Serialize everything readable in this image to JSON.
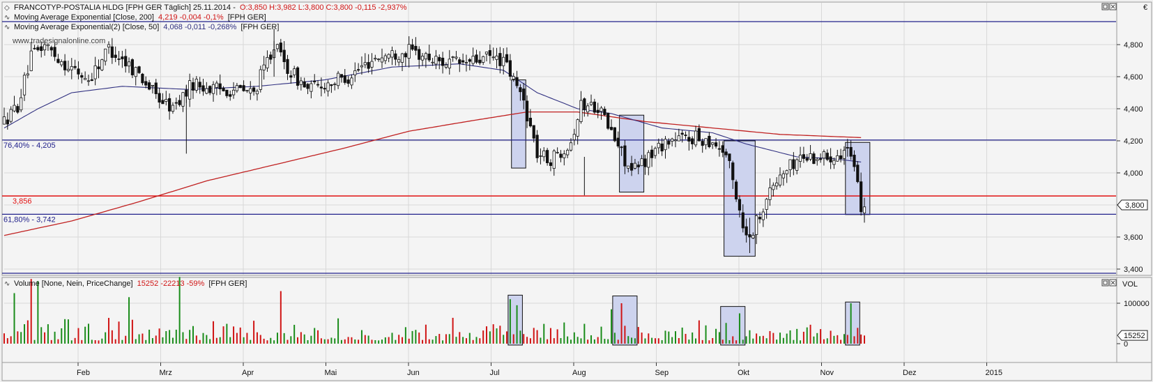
{
  "main_panel": {
    "title": "FRANCOTYP-POSTALIA HLDG [FPH GER  Täglich] 25.11.2014 -",
    "ohlc_text": "O:3,850 H:3,982 L:3,800 C:3,800 -0,115 -2,937%",
    "ema200": {
      "label": "Moving Average Exponential [Close, 200]",
      "values": "4,219 -0,004 -0,1%",
      "symbol": "[FPH GER]"
    },
    "ema50": {
      "label": "Moving Average Exponential(2) [Close, 50]",
      "values": "4,068 -0,011 -0,268%",
      "symbol": "[FPH GER]"
    },
    "watermark": "www.tradesignalonline.com",
    "currency": "€",
    "last_price": "3,800"
  },
  "volume_panel": {
    "label": "Volume [None, Nein, PriceChange]",
    "values": "15252 -22213 -59%",
    "symbol": "[FPH GER]",
    "axis_title": "VOL",
    "last_value": "15252"
  },
  "colors": {
    "up": "#1a8c1a",
    "down": "#d01414",
    "ema200": "#c02020",
    "ema50": "#303080",
    "hline_blue": "#20208a",
    "hline_red": "#e01010",
    "box_fill": "#cdd3ee",
    "box_stroke": "#101010"
  },
  "chart_data": [
    {
      "type": "candlestick",
      "yrange": [
        3.4,
        4.9
      ],
      "yticks": [
        "3,400",
        "3,600",
        "3,800",
        "4,000",
        "4,200",
        "4,400",
        "4,600",
        "4,800"
      ],
      "month_labels": [
        "Feb",
        "Mrz",
        "Apr",
        "Mai",
        "Jun",
        "Jul",
        "Aug",
        "Sep",
        "Okt",
        "Nov",
        "Dez",
        "2015"
      ],
      "bars_per_month": [
        20,
        21,
        20,
        21,
        20,
        22,
        21,
        22,
        21,
        19
      ],
      "horizontal_lines": [
        {
          "label": "76,40% - 4,205",
          "value": 4.205,
          "kind": "fib"
        },
        {
          "label": "3,856",
          "value": 3.856,
          "kind": "support"
        },
        {
          "label": "61,80% - 3,742",
          "value": 3.742,
          "kind": "fib"
        }
      ],
      "price_anchors": [
        [
          0,
          4.32
        ],
        [
          4,
          4.42
        ],
        [
          8,
          4.72
        ],
        [
          12,
          4.8
        ],
        [
          18,
          4.68
        ],
        [
          25,
          4.58
        ],
        [
          31,
          4.78
        ],
        [
          40,
          4.62
        ],
        [
          45,
          4.48
        ],
        [
          50,
          4.4
        ],
        [
          56,
          4.56
        ],
        [
          62,
          4.52
        ],
        [
          68,
          4.52
        ],
        [
          74,
          4.5
        ],
        [
          80,
          4.8
        ],
        [
          84,
          4.65
        ],
        [
          90,
          4.52
        ],
        [
          96,
          4.56
        ],
        [
          102,
          4.6
        ],
        [
          110,
          4.72
        ],
        [
          120,
          4.76
        ],
        [
          128,
          4.7
        ],
        [
          136,
          4.68
        ],
        [
          144,
          4.72
        ],
        [
          148,
          4.7
        ],
        [
          154,
          4.45
        ],
        [
          158,
          4.12
        ],
        [
          162,
          4.08
        ],
        [
          168,
          4.2
        ],
        [
          171,
          4.42
        ],
        [
          176,
          4.42
        ],
        [
          180,
          4.25
        ],
        [
          186,
          4.0
        ],
        [
          190,
          4.08
        ],
        [
          196,
          4.2
        ],
        [
          204,
          4.22
        ],
        [
          210,
          4.2
        ],
        [
          214,
          4.12
        ],
        [
          216,
          3.95
        ],
        [
          220,
          3.6
        ],
        [
          222,
          3.65
        ],
        [
          226,
          3.85
        ],
        [
          230,
          3.98
        ],
        [
          236,
          4.1
        ],
        [
          244,
          4.1
        ],
        [
          250,
          4.15
        ],
        [
          252,
          4.0
        ],
        [
          254,
          3.8
        ]
      ],
      "ema200_anchors": [
        [
          0,
          3.61
        ],
        [
          20,
          3.7
        ],
        [
          40,
          3.82
        ],
        [
          60,
          3.95
        ],
        [
          80,
          4.05
        ],
        [
          100,
          4.15
        ],
        [
          120,
          4.26
        ],
        [
          140,
          4.33
        ],
        [
          155,
          4.38
        ],
        [
          170,
          4.38
        ],
        [
          190,
          4.32
        ],
        [
          210,
          4.28
        ],
        [
          230,
          4.24
        ],
        [
          254,
          4.22
        ]
      ],
      "ema50_anchors": [
        [
          0,
          4.28
        ],
        [
          10,
          4.4
        ],
        [
          20,
          4.5
        ],
        [
          35,
          4.54
        ],
        [
          55,
          4.52
        ],
        [
          75,
          4.54
        ],
        [
          95,
          4.58
        ],
        [
          115,
          4.66
        ],
        [
          135,
          4.68
        ],
        [
          148,
          4.64
        ],
        [
          158,
          4.5
        ],
        [
          170,
          4.4
        ],
        [
          180,
          4.37
        ],
        [
          195,
          4.28
        ],
        [
          210,
          4.25
        ],
        [
          220,
          4.18
        ],
        [
          235,
          4.1
        ],
        [
          245,
          4.09
        ],
        [
          254,
          4.068
        ]
      ],
      "highlight_boxes": [
        {
          "start": 151,
          "end": 154,
          "high": 4.58,
          "low": 4.03
        },
        {
          "start": 183,
          "end": 189,
          "high": 4.36,
          "low": 3.88
        },
        {
          "start": 214,
          "end": 222,
          "high": 4.2,
          "low": 3.48
        },
        {
          "start": 250,
          "end": 256,
          "high": 4.19,
          "low": 3.74
        }
      ]
    },
    {
      "type": "bar",
      "series": "volume",
      "ymax": 185000,
      "yticks": [
        "0",
        "100000"
      ],
      "seed": 7,
      "spikes": [
        [
          8,
          160000
        ],
        [
          10,
          155000
        ],
        [
          3,
          125000
        ],
        [
          37,
          115000
        ],
        [
          52,
          165000
        ],
        [
          82,
          130000
        ],
        [
          150,
          110000
        ],
        [
          152,
          95000
        ],
        [
          180,
          85000
        ],
        [
          183,
          100000
        ],
        [
          218,
          75000
        ],
        [
          251,
          100000
        ]
      ],
      "highlight_boxes": [
        {
          "start": 150,
          "end": 153,
          "high": 120000,
          "low": 0
        },
        {
          "start": 181,
          "end": 187,
          "high": 118000,
          "low": 0
        },
        {
          "start": 213,
          "end": 219,
          "high": 92000,
          "low": 0
        },
        {
          "start": 250,
          "end": 253,
          "high": 103000,
          "low": 0
        }
      ]
    }
  ]
}
